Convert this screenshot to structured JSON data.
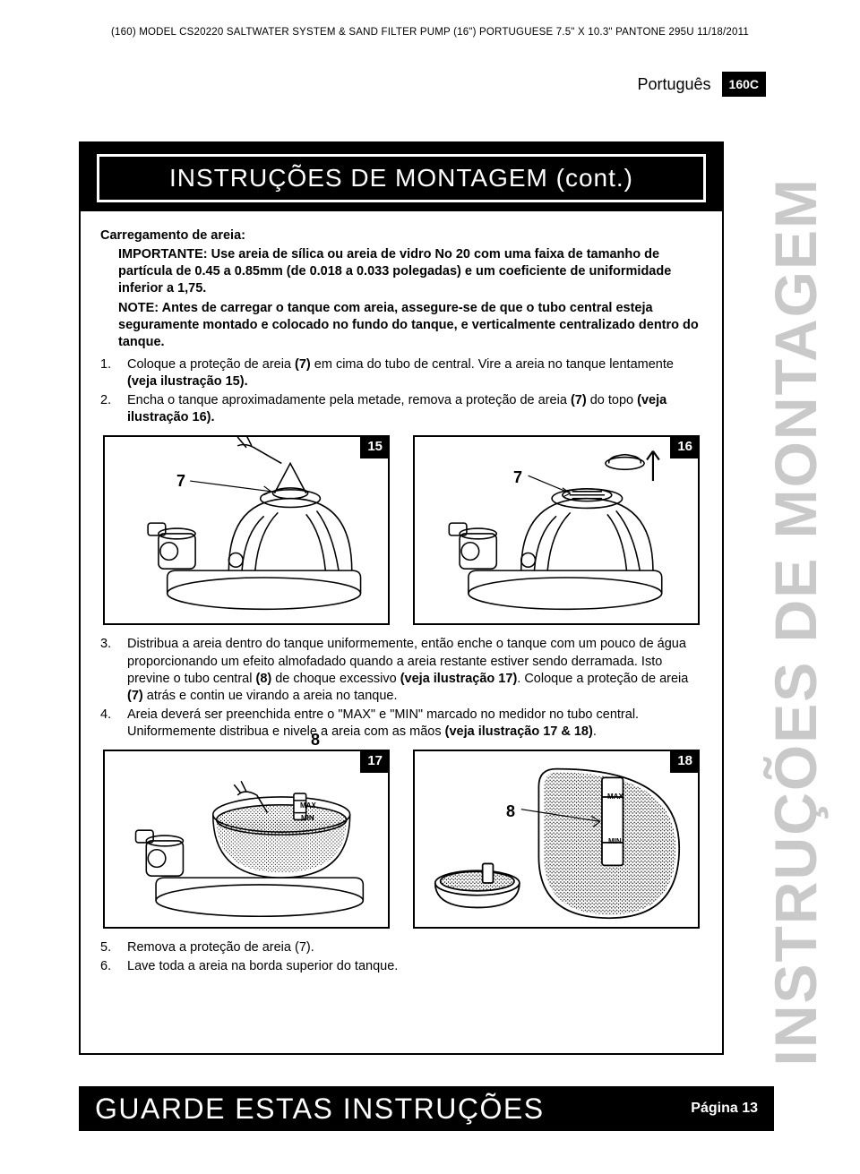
{
  "header_code": "(160) MODEL CS20220 SALTWATER SYSTEM & SAND FILTER PUMP (16\") PORTUGUESE 7.5\" X 10.3\" PANTONE 295U 11/18/2011",
  "language": "Português",
  "page_code": "160C",
  "side_tab": "INSTRUÇÕES DE MONTAGEM",
  "title": "INSTRUÇÕES DE MONTAGEM (cont.)",
  "subheading": "Carregamento de areia:",
  "important": "IMPORTANTE: Use areia de sílica ou areia de vidro No 20 com uma faixa de tamanho de partícula de 0.45 a 0.85mm (de 0.018 a 0.033 polegadas) e um coeficiente de uniformidade inferior a 1,75.",
  "note": "NOTE: Antes de carregar o tanque com areia, assegure-se de que o tubo central esteja seguramente montado e colocado no fundo do tanque, e verticalmente centralizado dentro do tanque.",
  "steps_first": [
    {
      "n": "1.",
      "text_a": "Coloque a proteção de areia ",
      "b1": "(7)",
      "text_b": " em cima do tubo de central. Vire a areia no tanque lentamente ",
      "b2": "(veja ilustração 15).",
      "text_c": ""
    },
    {
      "n": "2.",
      "text_a": "Encha o tanque aproximadamente pela metade, remova a proteção de areia ",
      "b1": "(7)",
      "text_b": " do topo ",
      "b2": "(veja ilustração 16).",
      "text_c": ""
    }
  ],
  "steps_mid": [
    {
      "n": "3.",
      "html": "Distribua a areia dentro do tanque uniformemente, então enche o tanque com um pouco de água proporcionando um efeito almofadado quando a areia restante estiver sendo derramada. Isto previne o tubo central <b>(8)</b> de choque excessivo <b>(veja ilustração 17)</b>. Coloque a proteção de areia <b>(7)</b> atrás e contin ue virando a areia no tanque."
    },
    {
      "n": "4.",
      "html": "Areia deverá ser preenchida entre o \"MAX\" e \"MIN\" marcado no medidor no tubo central. Uniformemente distribua e nivele a areia com as mãos <b>(veja ilustração 17 & 18)</b>."
    }
  ],
  "steps_last": [
    {
      "n": "5.",
      "text": "Remova a proteção de areia (7)."
    },
    {
      "n": "6.",
      "text": "Lave toda a areia na borda superior do tanque."
    }
  ],
  "figures": {
    "f15": {
      "num": "15",
      "callout": "7",
      "inner_label": ""
    },
    "f16": {
      "num": "16",
      "callout": "7",
      "inner_label": ""
    },
    "f17": {
      "num": "17",
      "callout": "8",
      "max": "MAX",
      "min": "MIN"
    },
    "f18": {
      "num": "18",
      "callout": "8",
      "max": "MAX",
      "min": "MIN"
    }
  },
  "footer_title": "GUARDE ESTAS INSTRUÇÕES",
  "footer_page": "Página 13",
  "colors": {
    "black": "#000000",
    "white": "#ffffff",
    "side_tab_gray": "#c9c9c9"
  }
}
